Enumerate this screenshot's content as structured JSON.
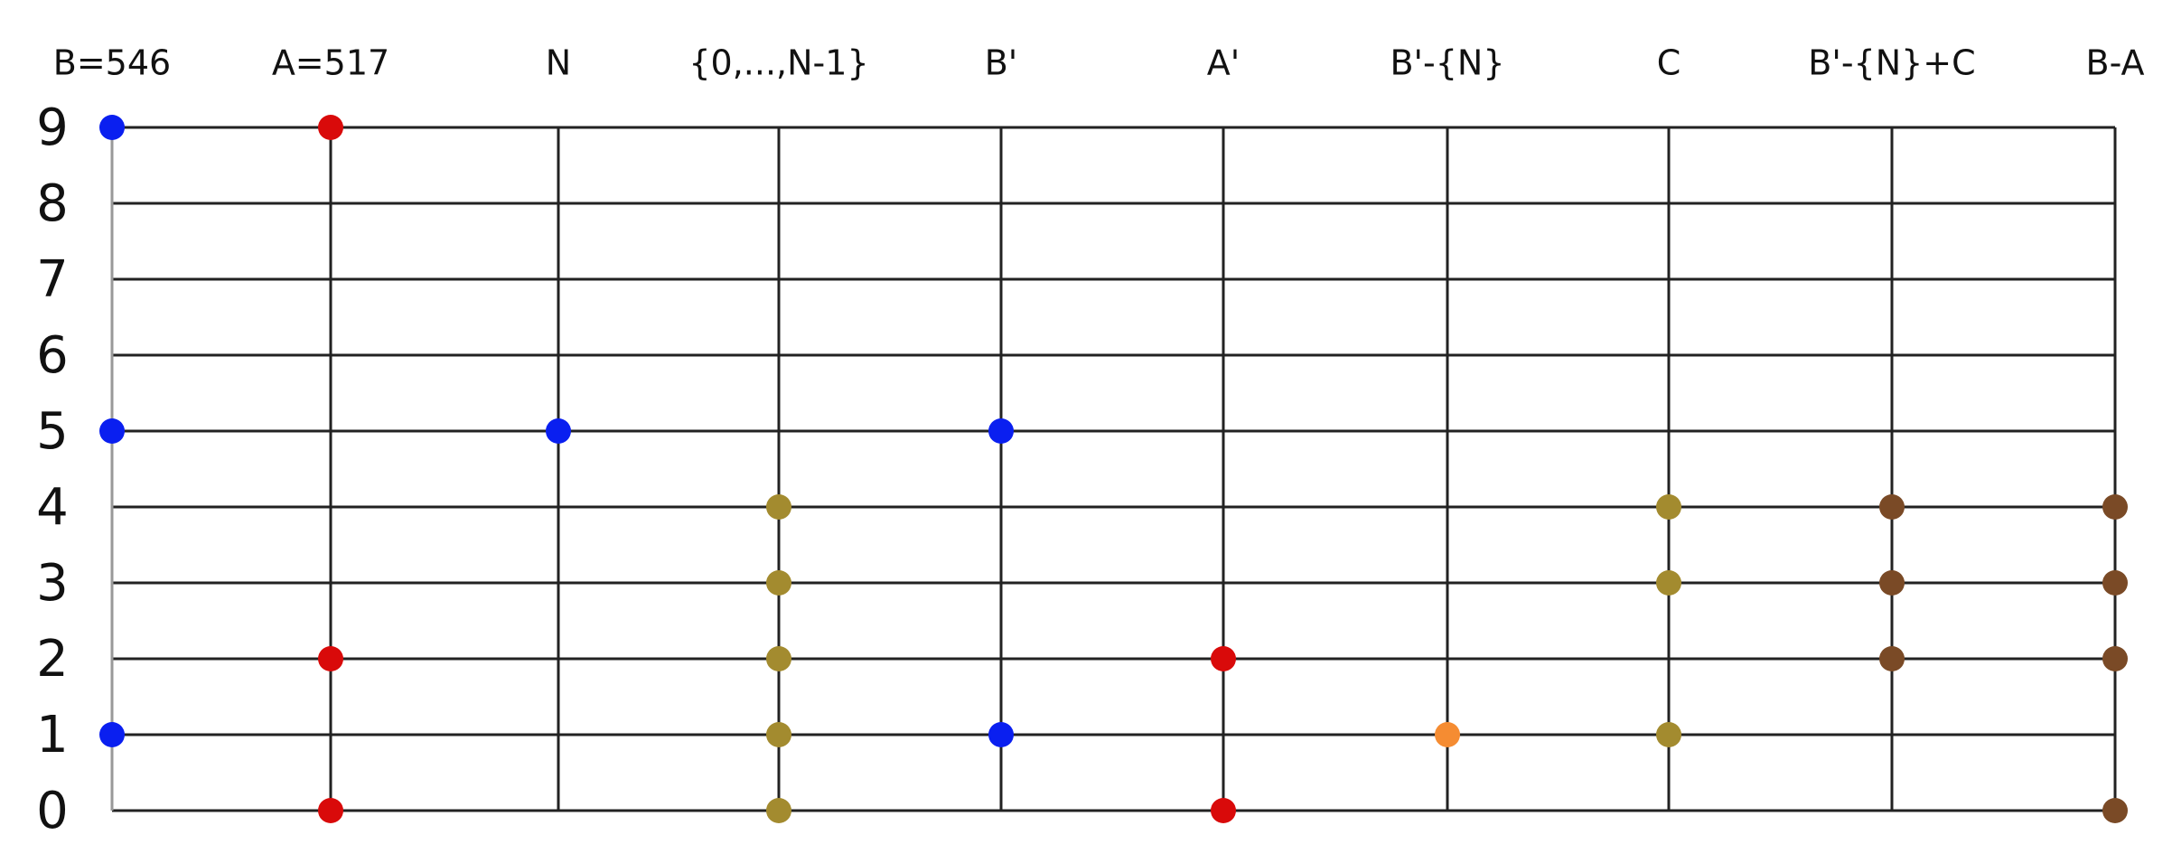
{
  "rows": [
    0,
    1,
    2,
    3,
    4,
    5,
    6,
    7,
    8,
    9
  ],
  "columns": [
    {
      "label": "B=546",
      "color": "#0a1ff0",
      "dots": [
        9,
        5,
        1
      ]
    },
    {
      "label": "A=517",
      "color": "#d90a0a",
      "dots": [
        9,
        2,
        0
      ]
    },
    {
      "label": "N",
      "color": "#0a1ff0",
      "dots": [
        5
      ]
    },
    {
      "label": "{0,...,N-1}",
      "color": "#a38b2f",
      "dots": [
        4,
        3,
        2,
        1,
        0
      ]
    },
    {
      "label": "B'",
      "color": "#0a1ff0",
      "dots": [
        5,
        1
      ]
    },
    {
      "label": "A'",
      "color": "#d90a0a",
      "dots": [
        2,
        0
      ]
    },
    {
      "label": "B'-{N}",
      "color": "#f58c32",
      "dots": [
        1
      ]
    },
    {
      "label": "C",
      "color": "#a38b2f",
      "dots": [
        4,
        3,
        1
      ]
    },
    {
      "label": "B'-{N}+C",
      "color": "#7a4a26",
      "dots": [
        4,
        3,
        2
      ]
    },
    {
      "label": "B-A",
      "color": "#7a4a26",
      "dots": [
        4,
        3,
        2,
        0
      ]
    }
  ]
}
